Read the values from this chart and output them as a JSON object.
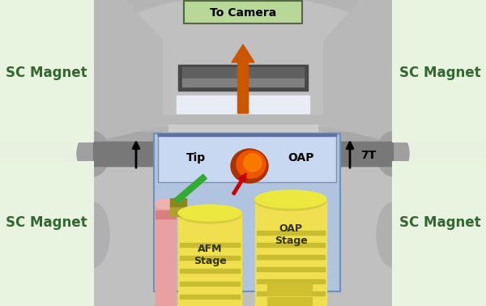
{
  "fig_width": 6.0,
  "fig_height": 3.78,
  "dpi": 100,
  "bg_color": "#e8f0e0",
  "gray_body": "#c8c8c8",
  "gray_dark": "#909090",
  "gray_med": "#b0b0b0",
  "gray_light": "#d8d8d8",
  "green_box_color": "#e8f4e0",
  "sc_magnet_text": "SC Magnet",
  "sc_magnet_fontsize": 12,
  "camera_label": "To Camera",
  "tip_label": "Tip",
  "oap_label": "OAP",
  "oap_stage_label": "OAP\nStage",
  "afm_stage_label": "AFM\nStage",
  "field_label": "7T",
  "arrow_orange": "#cc5500",
  "arrow_red": "#cc0000",
  "green_tip": "#33aa33",
  "blue_housing": "#b0c4e0",
  "blue_housing2": "#9ab0d0",
  "yellow_stage": "#f0e050",
  "yellow_dark": "#c8bc30",
  "pink_col": "#e8a0a0",
  "orange_spot": "#dd5500",
  "orange_spot2": "#ff7700",
  "white_window": "#e8ecf4",
  "dark_mount": "#484848",
  "silver_shelf": "#d0d0d0"
}
